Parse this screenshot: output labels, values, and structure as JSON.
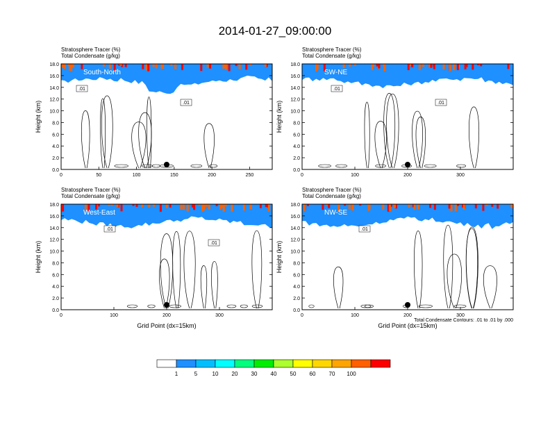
{
  "title": "2014-01-27_09:00:00",
  "footnote": "Total Condensate Contours: .01 to .01 by .000",
  "colorbar": {
    "labels": [
      "1",
      "5",
      "10",
      "20",
      "30",
      "40",
      "50",
      "60",
      "70",
      "100"
    ],
    "colors": [
      "#ffffff",
      "#1e90ff",
      "#00bfff",
      "#00ffff",
      "#00ff7f",
      "#00ee00",
      "#adff2f",
      "#ffff00",
      "#ffd700",
      "#ffa500",
      "#ff6000",
      "#ff0000"
    ]
  },
  "chart_data": [
    {
      "type": "heatmap",
      "panel": "South-North",
      "title_lines": [
        "Stratosphere Tracer   (%)",
        "Total Condensate   (g/kg)"
      ],
      "ylabel": "Height (km)",
      "xlabel": "",
      "xlim": [
        0,
        280
      ],
      "ylim": [
        0,
        18
      ],
      "xticks": [
        "0",
        "50",
        "100",
        "150",
        "200",
        "250"
      ],
      "yticks": [
        "0.0",
        "2.0",
        "4.0",
        "6.0",
        "8.0",
        "10.0",
        "12.0",
        "14.0",
        "16.0",
        "18.0"
      ],
      "contour_labels": [
        ".01",
        ".01"
      ]
    },
    {
      "type": "heatmap",
      "panel": "SW-NE",
      "title_lines": [
        "Stratosphere Tracer   (%)",
        "Total Condensate   (g/kg)"
      ],
      "ylabel": "Height (km)",
      "xlabel": "",
      "xlim": [
        0,
        400
      ],
      "ylim": [
        0,
        18
      ],
      "xticks": [
        "0",
        "100",
        "200",
        "300"
      ],
      "yticks": [
        "0.0",
        "2.0",
        "4.0",
        "6.0",
        "8.0",
        "10.0",
        "12.0",
        "14.0",
        "16.0",
        "18.0"
      ],
      "contour_labels": [
        ".01",
        ".01"
      ]
    },
    {
      "type": "heatmap",
      "panel": "West-East",
      "title_lines": [
        "Stratosphere Tracer   (%)",
        "Total Condensate   (g/kg)"
      ],
      "ylabel": "Height (km)",
      "xlabel": "Grid Point (dx=15km)",
      "xlim": [
        0,
        400
      ],
      "ylim": [
        0,
        18
      ],
      "xticks": [
        "0",
        "100",
        "200",
        "300"
      ],
      "yticks": [
        "0.0",
        "2.0",
        "4.0",
        "6.0",
        "8.0",
        "10.0",
        "12.0",
        "14.0",
        "16.0",
        "18.0"
      ],
      "contour_labels": [
        ".01",
        ".01"
      ]
    },
    {
      "type": "heatmap",
      "panel": "NW-SE",
      "title_lines": [
        "Stratosphere Tracer   (%)",
        "Total Condensate   (g/kg)"
      ],
      "ylabel": "Height (km)",
      "xlabel": "Grid Point (dx=15km)",
      "xlim": [
        0,
        400
      ],
      "ylim": [
        0,
        18
      ],
      "xticks": [
        "0",
        "100",
        "200",
        "300"
      ],
      "yticks": [
        "0.0",
        "2.0",
        "4.0",
        "6.0",
        "8.0",
        "10.0",
        "12.0",
        "14.0",
        "16.0",
        "18.0"
      ],
      "contour_labels": [
        ".01"
      ]
    }
  ]
}
